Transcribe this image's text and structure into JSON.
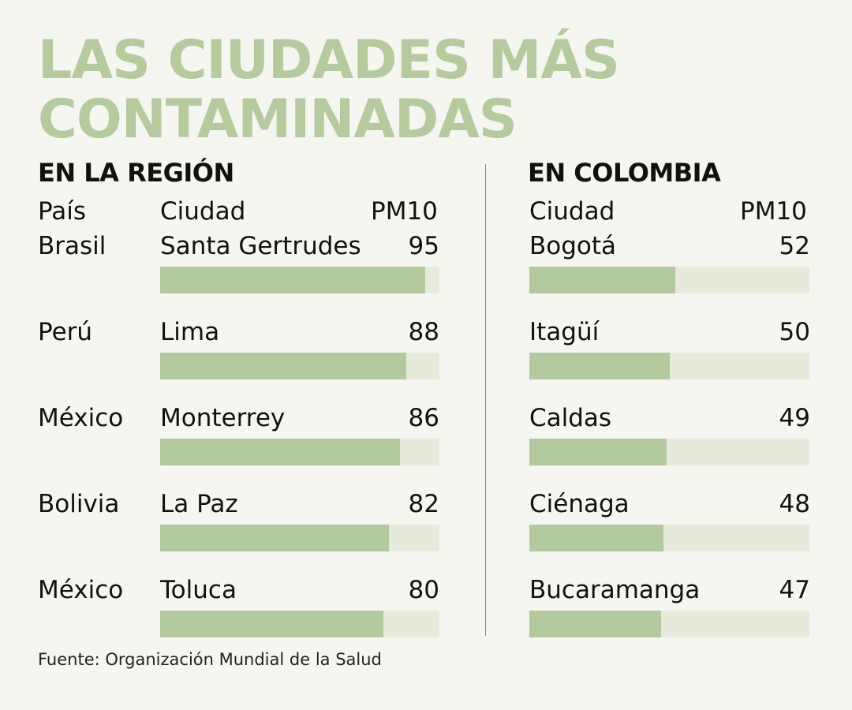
{
  "title_lines": [
    "LAS CIUDADES MÁS",
    "CONTAMINADAS"
  ],
  "source": "Fuente: Organización Mundial de la Salud",
  "colors": {
    "title": "#b6ca9f",
    "bar": "#b3c9a0",
    "track": "#e5eadb",
    "background": "#f5f6f0"
  },
  "chart_data": [
    {
      "type": "bar",
      "orientation": "horizontal",
      "subtitle": "EN LA REGIÓN",
      "headers": {
        "country": "País",
        "city": "Ciudad",
        "value": "PM10"
      },
      "countries": [
        "Brasil",
        "Perú",
        "México",
        "Bolivia",
        "México"
      ],
      "categories": [
        "Santa Gertrudes",
        "Lima",
        "Monterrey",
        "La Paz",
        "Toluca"
      ],
      "values": [
        95,
        88,
        86,
        82,
        80
      ],
      "xlim": [
        0,
        100
      ]
    },
    {
      "type": "bar",
      "orientation": "horizontal",
      "subtitle": "EN COLOMBIA",
      "headers": {
        "city": "Ciudad",
        "value": "PM10"
      },
      "categories": [
        "Bogotá",
        "Itagüí",
        "Caldas",
        "Ciénaga",
        "Bucaramanga"
      ],
      "values": [
        52,
        50,
        49,
        48,
        47
      ],
      "xlim": [
        0,
        100
      ]
    }
  ]
}
